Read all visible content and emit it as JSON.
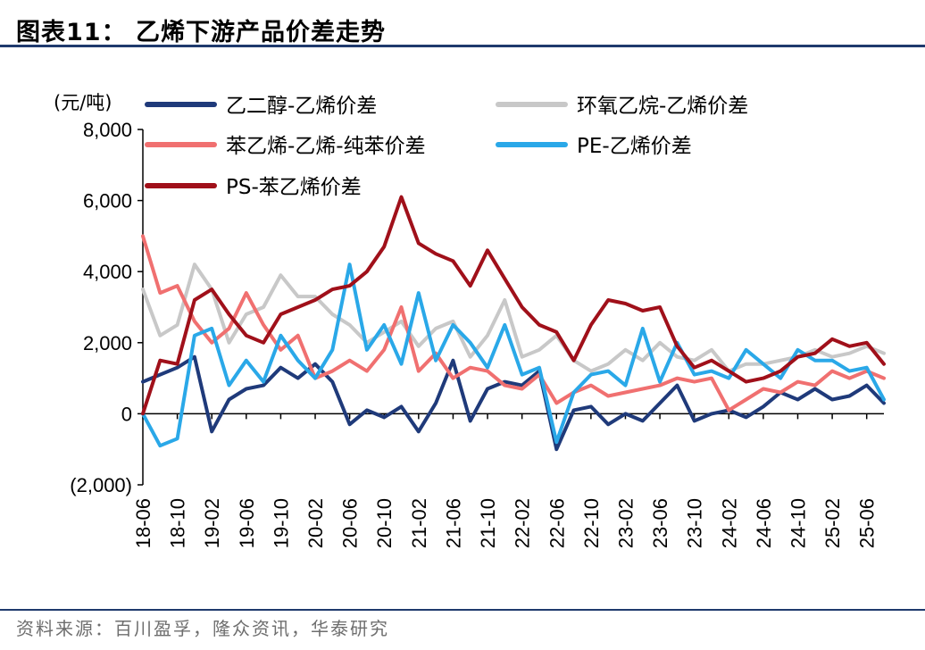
{
  "title": "图表11：  乙烯下游产品价差走势",
  "source": "资料来源：百川盈孚，隆众资讯，华泰研究",
  "chart_data": {
    "type": "line",
    "title": "图表11：  乙烯下游产品价差走势",
    "ylabel": "(元/吨)",
    "xlabel": "",
    "ylim": [
      -2000,
      8000
    ],
    "yticks": [
      -2000,
      0,
      2000,
      4000,
      6000,
      8000
    ],
    "ytick_labels": [
      "(2,000)",
      "0",
      "2,000",
      "4,000",
      "6,000",
      "8,000"
    ],
    "x_start": "2018-06",
    "x_end": "2025-08",
    "xtick_labels": [
      "18-06",
      "18-10",
      "19-02",
      "19-06",
      "19-10",
      "20-02",
      "20-06",
      "20-10",
      "21-02",
      "21-06",
      "21-10",
      "22-02",
      "22-06",
      "22-10",
      "23-02",
      "23-06",
      "23-10",
      "24-02",
      "24-06",
      "24-10",
      "25-02",
      "25-06"
    ],
    "legend_position": "top",
    "series": [
      {
        "name": "乙二醇-乙烯价差",
        "color": "#1f3a7a",
        "x": [
          "18-06",
          "18-08",
          "18-10",
          "18-12",
          "19-02",
          "19-04",
          "19-06",
          "19-08",
          "19-10",
          "19-12",
          "20-02",
          "20-04",
          "20-06",
          "20-08",
          "20-10",
          "20-12",
          "21-02",
          "21-04",
          "21-06",
          "21-08",
          "21-10",
          "21-12",
          "22-02",
          "22-04",
          "22-06",
          "22-08",
          "22-10",
          "22-12",
          "23-02",
          "23-04",
          "23-06",
          "23-08",
          "23-10",
          "23-12",
          "24-02",
          "24-04",
          "24-06",
          "24-08",
          "24-10",
          "24-12",
          "25-02",
          "25-04",
          "25-06",
          "25-08"
        ],
        "values": [
          900,
          1100,
          1300,
          1600,
          -500,
          400,
          700,
          800,
          1300,
          1000,
          1400,
          900,
          -300,
          100,
          -100,
          200,
          -500,
          300,
          1500,
          -200,
          700,
          900,
          800,
          1200,
          -1000,
          100,
          200,
          -300,
          0,
          -200,
          300,
          800,
          -200,
          0,
          100,
          -100,
          200,
          600,
          400,
          700,
          400,
          500,
          800,
          300
        ]
      },
      {
        "name": "环氧乙烷-乙烯价差",
        "color": "#c8c8c8",
        "x": [
          "18-06",
          "18-08",
          "18-10",
          "18-12",
          "19-02",
          "19-04",
          "19-06",
          "19-08",
          "19-10",
          "19-12",
          "20-02",
          "20-04",
          "20-06",
          "20-08",
          "20-10",
          "20-12",
          "21-02",
          "21-04",
          "21-06",
          "21-08",
          "21-10",
          "21-12",
          "22-02",
          "22-04",
          "22-06",
          "22-08",
          "22-10",
          "22-12",
          "23-02",
          "23-04",
          "23-06",
          "23-08",
          "23-10",
          "23-12",
          "24-02",
          "24-04",
          "24-06",
          "24-08",
          "24-10",
          "24-12",
          "25-02",
          "25-04",
          "25-06",
          "25-08"
        ],
        "values": [
          3500,
          2200,
          2500,
          4200,
          3500,
          2000,
          2800,
          3000,
          3900,
          3300,
          3300,
          2800,
          2500,
          2000,
          2300,
          2600,
          1900,
          2400,
          2600,
          1600,
          2200,
          3200,
          1600,
          1800,
          2200,
          1500,
          1200,
          1400,
          1800,
          1500,
          2000,
          1600,
          1500,
          1800,
          1200,
          1400,
          1400,
          1500,
          1600,
          1800,
          1600,
          1700,
          1900,
          1700
        ]
      },
      {
        "name": "苯乙烯-乙烯-纯苯价差",
        "color": "#f07070",
        "x": [
          "18-06",
          "18-08",
          "18-10",
          "18-12",
          "19-02",
          "19-04",
          "19-06",
          "19-08",
          "19-10",
          "19-12",
          "20-02",
          "20-04",
          "20-06",
          "20-08",
          "20-10",
          "20-12",
          "21-02",
          "21-04",
          "21-06",
          "21-08",
          "21-10",
          "21-12",
          "22-02",
          "22-04",
          "22-06",
          "22-08",
          "22-10",
          "22-12",
          "23-02",
          "23-04",
          "23-06",
          "23-08",
          "23-10",
          "23-12",
          "24-02",
          "24-04",
          "24-06",
          "24-08",
          "24-10",
          "24-12",
          "25-02",
          "25-04",
          "25-06",
          "25-08"
        ],
        "values": [
          5000,
          3400,
          3600,
          2600,
          2000,
          2400,
          3400,
          2500,
          1800,
          2200,
          1000,
          1200,
          1500,
          1200,
          1800,
          3000,
          1200,
          1700,
          1000,
          1300,
          1200,
          800,
          700,
          1100,
          300,
          600,
          800,
          500,
          600,
          700,
          800,
          1000,
          900,
          1000,
          100,
          400,
          700,
          600,
          900,
          800,
          1200,
          1000,
          1200,
          1000
        ]
      },
      {
        "name": "PE-乙烯价差",
        "color": "#2aa8e8",
        "x": [
          "18-06",
          "18-08",
          "18-10",
          "18-12",
          "19-02",
          "19-04",
          "19-06",
          "19-08",
          "19-10",
          "19-12",
          "20-02",
          "20-04",
          "20-06",
          "20-08",
          "20-10",
          "20-12",
          "21-02",
          "21-04",
          "21-06",
          "21-08",
          "21-10",
          "21-12",
          "22-02",
          "22-04",
          "22-06",
          "22-08",
          "22-10",
          "22-12",
          "23-02",
          "23-04",
          "23-06",
          "23-08",
          "23-10",
          "23-12",
          "24-02",
          "24-04",
          "24-06",
          "24-08",
          "24-10",
          "24-12",
          "25-02",
          "25-04",
          "25-06",
          "25-08"
        ],
        "values": [
          0,
          -900,
          -700,
          2200,
          2400,
          800,
          1500,
          900,
          2200,
          1500,
          1000,
          1800,
          4200,
          1800,
          2500,
          1400,
          3400,
          1500,
          2500,
          2000,
          1300,
          2500,
          1100,
          1300,
          -800,
          600,
          1100,
          1200,
          800,
          2400,
          900,
          2000,
          1100,
          1200,
          1000,
          1800,
          1400,
          1000,
          1800,
          1500,
          1500,
          1200,
          1300,
          400
        ]
      },
      {
        "name": "PS-苯乙烯价差",
        "color": "#a0101a",
        "x": [
          "18-06",
          "18-08",
          "18-10",
          "18-12",
          "19-02",
          "19-04",
          "19-06",
          "19-08",
          "19-10",
          "19-12",
          "20-02",
          "20-04",
          "20-06",
          "20-08",
          "20-10",
          "20-12",
          "21-02",
          "21-04",
          "21-06",
          "21-08",
          "21-10",
          "21-12",
          "22-02",
          "22-04",
          "22-06",
          "22-08",
          "22-10",
          "22-12",
          "23-02",
          "23-04",
          "23-06",
          "23-08",
          "23-10",
          "23-12",
          "24-02",
          "24-04",
          "24-06",
          "24-08",
          "24-10",
          "24-12",
          "25-02",
          "25-04",
          "25-06",
          "25-08"
        ],
        "values": [
          0,
          1500,
          1400,
          3200,
          3500,
          2800,
          2200,
          2000,
          2800,
          3000,
          3200,
          3500,
          3600,
          4000,
          4700,
          6100,
          4800,
          4500,
          4300,
          3600,
          4600,
          3800,
          3000,
          2500,
          2300,
          1500,
          2500,
          3200,
          3100,
          2900,
          3000,
          1900,
          1300,
          1500,
          1200,
          900,
          1000,
          1200,
          1600,
          1700,
          2100,
          1900,
          2000,
          1400
        ]
      }
    ]
  }
}
